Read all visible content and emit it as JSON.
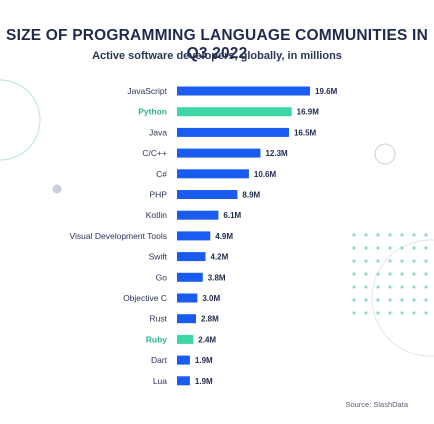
{
  "chart_data": {
    "type": "bar",
    "orientation": "horizontal",
    "title": "SIZE OF PROGRAMMING LANGUAGE COMMUNITIES IN Q3 2022",
    "subtitle": "Active software developers, globally, in millions",
    "categories": [
      "JavaScript",
      "Python",
      "Java",
      "C/C++",
      "C#",
      "PHP",
      "Kotlin",
      "Visual Development Tools",
      "Swift",
      "Go",
      "Objective C",
      "Rust",
      "Ruby",
      "Dart",
      "Lua"
    ],
    "values": [
      19.6,
      16.9,
      16.5,
      12.3,
      10.6,
      8.9,
      6.1,
      4.9,
      4.2,
      3.8,
      3.0,
      2.8,
      2.4,
      1.9,
      1.9
    ],
    "value_labels": [
      "19.6M",
      "16.9M",
      "16.5M",
      "12.3M",
      "10.6M",
      "8.9M",
      "6.1M",
      "4.9M",
      "4.2M",
      "3.8M",
      "3.0M",
      "2.8M",
      "2.4M",
      "1.9M",
      "1.9M"
    ],
    "highlighted": [
      "Python",
      "Ruby"
    ],
    "source": "Source: SlashData",
    "xlim": [
      0,
      19.6
    ],
    "grid": false,
    "legend": "none"
  },
  "colors": {
    "bar": "#1a5cf0",
    "highlight_bar": "#3dd6a6",
    "highlight_text": "#2bb48e",
    "title": "#1f2a4d",
    "decoration": "#bfe9dc"
  }
}
